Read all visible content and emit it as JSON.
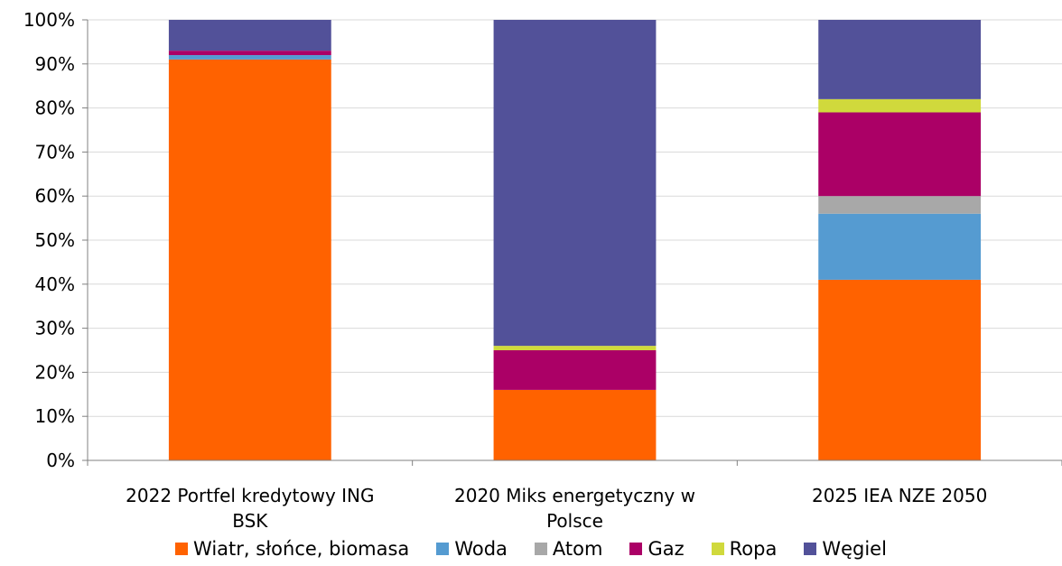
{
  "chart_data": {
    "type": "bar",
    "stacked": true,
    "title": "",
    "xlabel": "",
    "ylabel": "",
    "ylim": [
      0,
      100
    ],
    "yticks": [
      "0%",
      "10%",
      "20%",
      "30%",
      "40%",
      "50%",
      "60%",
      "70%",
      "80%",
      "90%",
      "100%"
    ],
    "categories": [
      [
        "2022 Portfel kredytowy ING",
        "BSK"
      ],
      [
        "2020 Miks energetyczny w",
        "Polsce"
      ],
      [
        "2025 IEA NZE 2050"
      ]
    ],
    "series": [
      {
        "name": "Wiatr, słońce, biomasa",
        "color": "#FF6200",
        "values": [
          91,
          16,
          41
        ]
      },
      {
        "name": "Woda",
        "color": "#559BD1",
        "values": [
          1,
          0,
          15
        ]
      },
      {
        "name": "Atom",
        "color": "#A8A8A8",
        "values": [
          0,
          0,
          4
        ]
      },
      {
        "name": "Gaz",
        "color": "#AB0066",
        "values": [
          1,
          9,
          19
        ]
      },
      {
        "name": "Ropa",
        "color": "#D0D93C",
        "values": [
          0,
          1,
          3
        ]
      },
      {
        "name": "Węgiel",
        "color": "#525199",
        "values": [
          7,
          74,
          18
        ]
      }
    ],
    "grid": true,
    "legend_position": "bottom"
  }
}
